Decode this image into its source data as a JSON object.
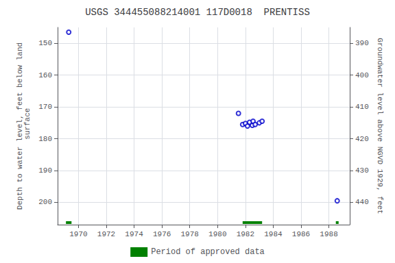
{
  "chart_data": {
    "type": "scatter",
    "title": "USGS 344455088214001 117D0018  PRENTISS",
    "ylabel": "Depth to water level, feet below land\n surface",
    "y2label": "Groundwater level above NGVD 1929, feet",
    "xlim": [
      1968.5,
      1989.5
    ],
    "xticks": [
      1970,
      1972,
      1974,
      1976,
      1978,
      1980,
      1982,
      1984,
      1986,
      1988
    ],
    "ylim": [
      207,
      145
    ],
    "yticks": [
      150,
      160,
      170,
      180,
      190,
      200
    ],
    "y2lim": [
      447,
      385
    ],
    "y2ticks": [
      440,
      430,
      420,
      410,
      400,
      390
    ],
    "grid": true,
    "legend": "bottom",
    "series": [
      {
        "type": "scatter",
        "color": "#0000cc",
        "marker": "open_circle",
        "x": [
          1969.3,
          1981.5,
          1981.8,
          1982.0,
          1982.15,
          1982.3,
          1982.5,
          1982.55,
          1982.7,
          1983.0,
          1983.2,
          1988.6
        ],
        "values": [
          146.5,
          172.0,
          175.5,
          175.2,
          176.0,
          174.8,
          175.8,
          174.5,
          175.5,
          175.0,
          174.5,
          199.5
        ]
      },
      {
        "name": "Period of approved data",
        "type": "span",
        "color": "#008000",
        "x_start": [
          1969.1,
          1981.8,
          1988.5
        ],
        "x_end": [
          1969.5,
          1983.2,
          1988.7
        ]
      }
    ]
  }
}
